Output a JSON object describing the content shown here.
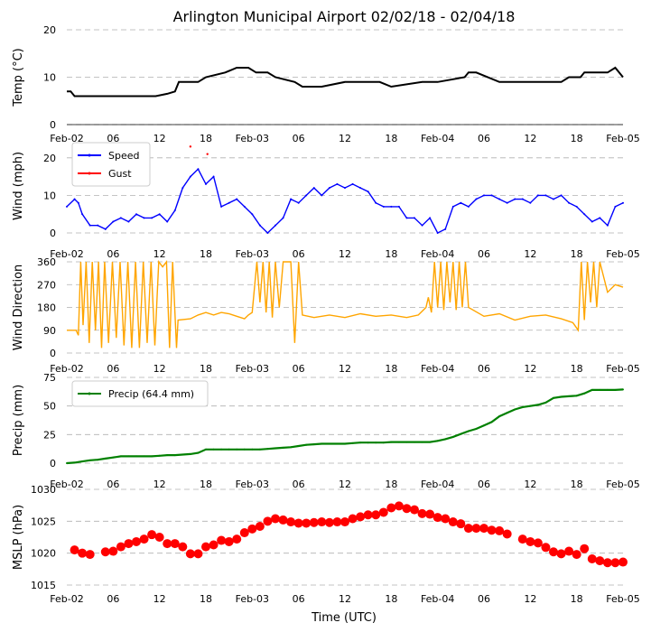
{
  "title": "Arlington Municipal Airport 02/02/18 - 02/04/18",
  "xlabel": "Time (UTC)",
  "time_axis": {
    "range_hours": [
      0,
      72
    ],
    "tick_hours": [
      0,
      6,
      12,
      18,
      24,
      30,
      36,
      42,
      48,
      54,
      60,
      66,
      72
    ],
    "tick_labels": [
      "Feb-02",
      "06",
      "12",
      "18",
      "Feb-03",
      "06",
      "12",
      "18",
      "Feb-04",
      "06",
      "12",
      "18",
      "Feb-05"
    ]
  },
  "colors": {
    "temp": "#000000",
    "speed": "#0000ff",
    "gust": "#ff0000",
    "direction": "#ffa500",
    "precip": "#008000",
    "mslp": "#ff0000",
    "grid": "#b0b0b0"
  },
  "chart_data": [
    {
      "id": "temp",
      "type": "line",
      "ylabel": "Temp (°C)",
      "ylim": [
        0,
        20
      ],
      "yticks": [
        0,
        10,
        20
      ],
      "series": [
        {
          "name": "Temp",
          "x": [
            0,
            0.5,
            1,
            5,
            9.5,
            11,
            11.5,
            13,
            14,
            14.5,
            15.5,
            17,
            18,
            20.5,
            22,
            23.5,
            24.5,
            26,
            27,
            29.5,
            30.5,
            33,
            36,
            36.5,
            40.5,
            42,
            46,
            48,
            51.5,
            52,
            53,
            56,
            60,
            63,
            64,
            65,
            65.5,
            66.5,
            67,
            69,
            70,
            71,
            72
          ],
          "y": [
            7,
            7,
            6,
            6,
            6,
            6,
            6,
            6.5,
            7,
            9,
            9,
            9,
            10,
            11,
            12,
            12,
            11,
            11,
            10,
            9,
            8,
            8,
            9,
            9,
            9,
            8,
            9,
            9,
            10,
            11,
            11,
            9,
            9,
            9,
            9,
            10,
            10,
            10,
            11,
            11,
            11,
            12,
            10
          ]
        }
      ]
    },
    {
      "id": "wind",
      "type": "line",
      "ylabel": "Wind (mph)",
      "ylim": [
        0,
        25
      ],
      "yticks": [
        0,
        10,
        20
      ],
      "legend": [
        "Speed",
        "Gust"
      ],
      "series": [
        {
          "name": "Speed",
          "x": [
            0,
            1,
            1.5,
            2,
            3,
            4,
            5,
            6,
            7,
            8,
            9,
            10,
            11,
            12,
            13,
            14,
            15,
            16,
            17,
            18,
            19,
            20,
            21,
            22,
            23,
            24,
            25,
            26,
            27,
            28,
            29,
            30,
            31,
            32,
            33,
            34,
            35,
            36,
            37,
            38,
            39,
            40,
            41,
            42,
            43,
            44,
            45,
            46,
            47,
            48,
            49,
            50,
            51,
            52,
            53,
            54,
            55,
            56,
            57,
            58,
            59,
            60,
            61,
            62,
            63,
            64,
            65,
            66,
            67,
            68,
            69,
            70,
            71,
            72
          ],
          "y": [
            7,
            9,
            8,
            5,
            2,
            2,
            1,
            3,
            4,
            3,
            5,
            4,
            4,
            5,
            3,
            6,
            12,
            15,
            17,
            13,
            15,
            7,
            8,
            9,
            7,
            5,
            2,
            0,
            2,
            4,
            9,
            8,
            10,
            12,
            10,
            12,
            13,
            12,
            13,
            12,
            11,
            8,
            7,
            7,
            7,
            4,
            4,
            2,
            4,
            0,
            1,
            7,
            8,
            7,
            9,
            10,
            10,
            9,
            8,
            9,
            9,
            8,
            10,
            10,
            9,
            10,
            8,
            7,
            5,
            3,
            4,
            2,
            7,
            8
          ]
        },
        {
          "name": "Gust",
          "x": [
            16,
            18.2
          ],
          "y": [
            23,
            21
          ]
        }
      ]
    },
    {
      "id": "direction",
      "type": "line",
      "ylabel": "Wind Direction",
      "ylim": [
        0,
        360
      ],
      "yticks": [
        0,
        90,
        180,
        270,
        360
      ],
      "series": [
        {
          "name": "Direction",
          "x": [
            0,
            1.2,
            1.5,
            1.8,
            2.1,
            2.5,
            2.9,
            3.3,
            3.7,
            4.1,
            4.5,
            4.9,
            5.4,
            5.9,
            6.4,
            6.9,
            7.4,
            7.9,
            8.4,
            8.9,
            9.4,
            9.9,
            10.4,
            10.9,
            11.4,
            11.9,
            12.4,
            12.9,
            13.3,
            13.7,
            14.2,
            14.4,
            16,
            17,
            18,
            19,
            20,
            21,
            22,
            23,
            23.5,
            24,
            24.6,
            25,
            25.4,
            25.8,
            26.2,
            26.6,
            27,
            27.5,
            28,
            28.5,
            29,
            29.5,
            30,
            30.5,
            32,
            34,
            36,
            38,
            40,
            42,
            44,
            45.5,
            46.5,
            46.8,
            47.2,
            47.6,
            48,
            48.4,
            48.8,
            49.2,
            49.6,
            50,
            50.4,
            50.8,
            51.2,
            51.6,
            52,
            54,
            56,
            58,
            60,
            62,
            64,
            65.5,
            66.2,
            66.6,
            67,
            67.4,
            67.8,
            68.2,
            68.6,
            69,
            70,
            71,
            72
          ],
          "y": [
            90,
            90,
            70,
            360,
            110,
            360,
            40,
            360,
            90,
            360,
            20,
            360,
            40,
            360,
            60,
            360,
            30,
            360,
            20,
            360,
            20,
            360,
            40,
            360,
            30,
            360,
            340,
            360,
            20,
            360,
            20,
            130,
            135,
            150,
            160,
            150,
            160,
            155,
            145,
            135,
            150,
            160,
            360,
            200,
            360,
            160,
            360,
            140,
            360,
            180,
            360,
            360,
            360,
            40,
            360,
            150,
            140,
            150,
            140,
            155,
            145,
            150,
            140,
            150,
            180,
            220,
            160,
            360,
            180,
            360,
            170,
            360,
            200,
            360,
            170,
            360,
            180,
            360,
            180,
            145,
            155,
            130,
            145,
            150,
            135,
            120,
            90,
            360,
            130,
            360,
            200,
            360,
            180,
            360,
            240,
            270,
            260
          ]
        }
      ]
    },
    {
      "id": "precip",
      "type": "line",
      "ylabel": "Precip (mm)",
      "ylim": [
        0,
        75
      ],
      "yticks": [
        0,
        25,
        50,
        75
      ],
      "legend": [
        "Precip (64.4 mm)"
      ],
      "series": [
        {
          "name": "Precip (64.4 mm)",
          "x": [
            0,
            1,
            2,
            3,
            4,
            5,
            6,
            7,
            8,
            9,
            10,
            11,
            12,
            13,
            14,
            15,
            16,
            17,
            18,
            19,
            20,
            21,
            22,
            23,
            24,
            25,
            26,
            27,
            28,
            29,
            30,
            31,
            32,
            33,
            34,
            35,
            36,
            37,
            38,
            39,
            40,
            41,
            42,
            43,
            44,
            45,
            46,
            47,
            48,
            49,
            50,
            51,
            52,
            53,
            54,
            55,
            56,
            57,
            58,
            59,
            60,
            61,
            62,
            63,
            64,
            65,
            66,
            67,
            68,
            69,
            70,
            71,
            72
          ],
          "y": [
            0,
            0.5,
            1.5,
            2.5,
            3,
            4,
            5,
            6,
            6,
            6,
            6,
            6,
            6.5,
            7,
            7,
            7.5,
            8,
            9,
            12,
            12,
            12,
            12,
            12,
            12,
            12,
            12,
            12.5,
            13,
            13.5,
            14,
            15,
            16,
            16.5,
            17,
            17,
            17,
            17,
            17.5,
            18,
            18,
            18,
            18,
            18.5,
            18.5,
            18.5,
            18.5,
            18.5,
            18.5,
            19.5,
            21,
            23,
            25.5,
            28,
            30,
            33,
            36,
            41,
            44,
            47,
            49,
            50,
            51,
            53,
            57,
            58,
            58.5,
            59,
            61,
            64,
            64,
            64,
            64,
            64.4
          ]
        }
      ]
    },
    {
      "id": "mslp",
      "type": "scatter",
      "ylabel": "MSLP (hPa)",
      "ylim": [
        1015,
        1030
      ],
      "yticks": [
        1015,
        1020,
        1025,
        1030
      ],
      "series": [
        {
          "name": "MSLP",
          "x": [
            1,
            2,
            3,
            5,
            6,
            7,
            8,
            9,
            10,
            11,
            12,
            13,
            14,
            15,
            16,
            17,
            18,
            19,
            20,
            21,
            22,
            23,
            24,
            25,
            26,
            27,
            28,
            29,
            30,
            31,
            32,
            33,
            34,
            35,
            36,
            37,
            38,
            39,
            40,
            41,
            42,
            43,
            44,
            45,
            46,
            47,
            48,
            49,
            50,
            51,
            52,
            53,
            54,
            55,
            56,
            57,
            59,
            60,
            61,
            62,
            63,
            64,
            65,
            66,
            67,
            68,
            69,
            70,
            71,
            72
          ],
          "y": [
            1020.5,
            1020,
            1019.8,
            1020.2,
            1020.3,
            1021,
            1021.5,
            1021.8,
            1022.2,
            1022.9,
            1022.5,
            1021.5,
            1021.5,
            1021,
            1019.9,
            1019.9,
            1021,
            1021.3,
            1022,
            1021.8,
            1022.2,
            1023.2,
            1023.8,
            1024.2,
            1025,
            1025.4,
            1025.2,
            1024.9,
            1024.7,
            1024.7,
            1024.8,
            1024.9,
            1024.8,
            1024.9,
            1024.9,
            1025.4,
            1025.7,
            1026,
            1026,
            1026.4,
            1027.1,
            1027.4,
            1027,
            1026.8,
            1026.2,
            1026.1,
            1025.6,
            1025.4,
            1024.9,
            1024.6,
            1023.9,
            1023.9,
            1023.9,
            1023.6,
            1023.5,
            1023,
            1022.2,
            1021.8,
            1021.6,
            1020.9,
            1020.2,
            1019.9,
            1020.3,
            1019.8,
            1020.7,
            1019.1,
            1018.8,
            1018.5,
            1018.5,
            1018.6
          ]
        }
      ]
    }
  ]
}
